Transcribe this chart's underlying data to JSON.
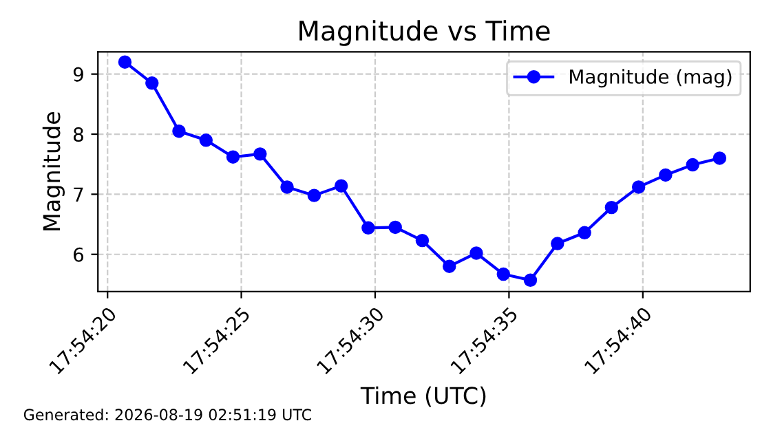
{
  "chart_data": {
    "type": "line",
    "title": "Magnitude vs Time",
    "xlabel": "Time (UTC)",
    "ylabel": "Magnitude",
    "x": [
      17.905736,
      17.906017,
      17.906297,
      17.906578,
      17.906858,
      17.907139,
      17.907419,
      17.9077,
      17.907981,
      17.908261,
      17.908542,
      17.908822,
      17.909103,
      17.909383,
      17.909664,
      17.909944,
      17.910225,
      17.910506,
      17.910786,
      17.911067,
      17.911347,
      17.911628,
      17.911908
    ],
    "series": [
      {
        "name": "Magnitude (mag)",
        "color": "#0000ff",
        "values": [
          9.2,
          8.85,
          8.05,
          7.9,
          7.62,
          7.67,
          7.12,
          6.98,
          7.14,
          6.44,
          6.45,
          6.23,
          5.8,
          6.02,
          5.67,
          5.57,
          6.18,
          6.36,
          6.78,
          7.12,
          7.32,
          7.49,
          7.6
        ]
      }
    ],
    "xlim": [
      17.905456,
      17.912225
    ],
    "xticks": [
      {
        "value": 17.905556,
        "label": "17:54:20"
      },
      {
        "value": 17.906944,
        "label": "17:54:25"
      },
      {
        "value": 17.908333,
        "label": "17:54:30"
      },
      {
        "value": 17.909722,
        "label": "17:54:35"
      },
      {
        "value": 17.911111,
        "label": "17:54:40"
      }
    ],
    "ylim": [
      5.38,
      9.37
    ],
    "yticks": [
      6,
      7,
      8,
      9
    ],
    "grid": true,
    "legend": "top right",
    "marker": "circle",
    "line_style": "solid",
    "annotations": [
      "Generated: 2026-08-19 02:51:19 UTC"
    ]
  }
}
